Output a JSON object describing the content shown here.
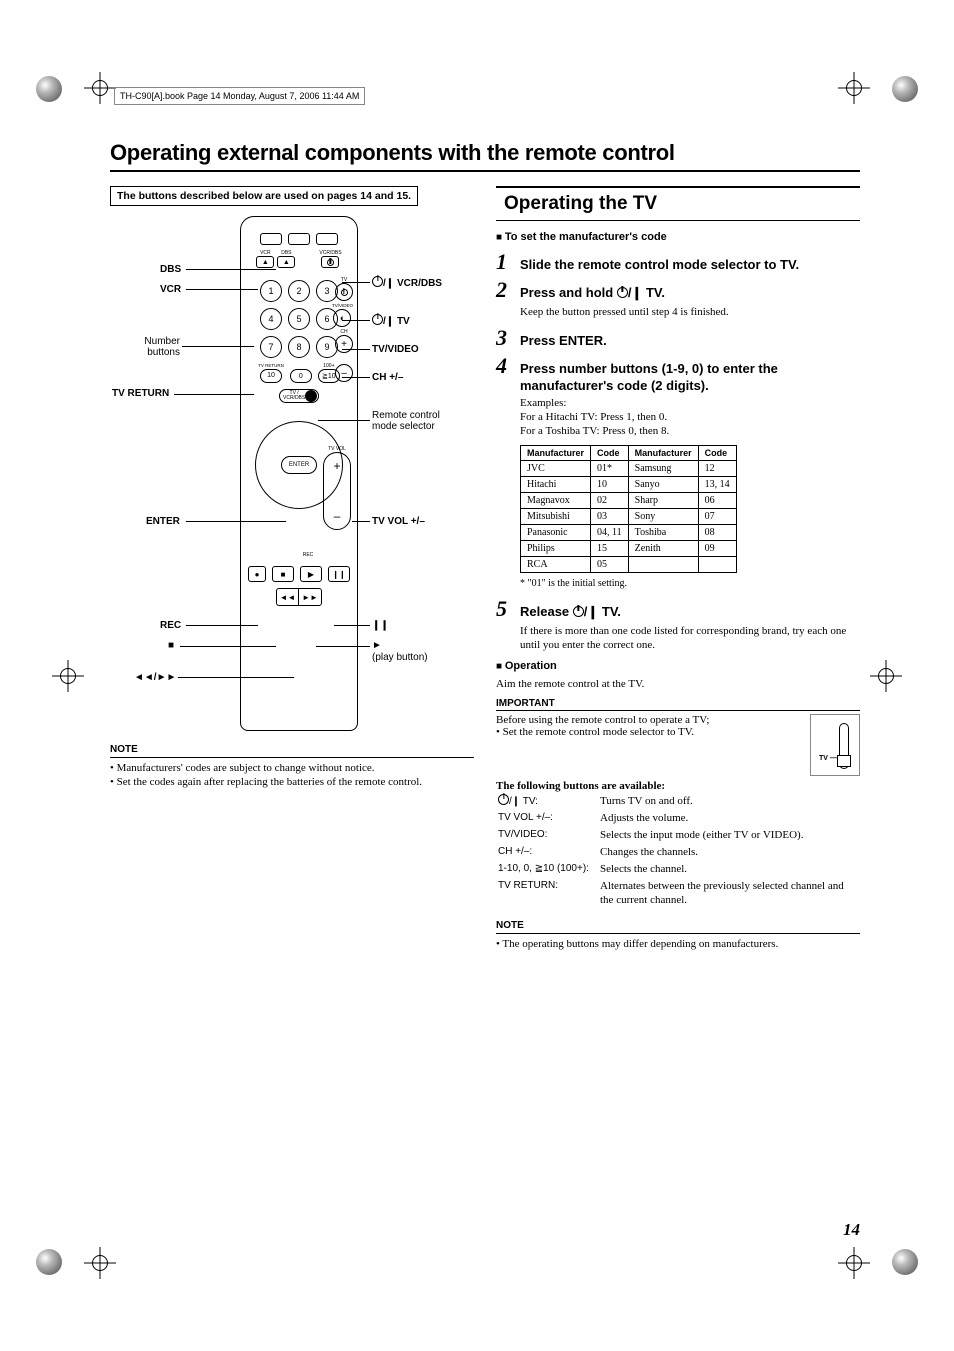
{
  "header_strip": "TH-C90[A].book  Page 14  Monday, August 7, 2006  11:44 AM",
  "main_title": "Operating external components with the remote control",
  "left": {
    "boxed_note": "The buttons described below are used on pages 14 and 15.",
    "callouts": {
      "dbs": "DBS",
      "vcr": "VCR",
      "number_buttons": "Number buttons",
      "tv_return": "TV RETURN",
      "enter": "ENTER",
      "rec": "REC",
      "stop": "■",
      "rw_ff": "◄◄/►►",
      "vcr_dbs_power": " VCR/DBS",
      "tv_power": " TV",
      "tv_video": "TV/VIDEO",
      "ch": "CH +/–",
      "mode_selector": "Remote control mode selector",
      "tv_vol": "TV VOL +/–",
      "pause": "❙❙",
      "play": "►",
      "play_button": "(play button)"
    },
    "remote_keys": {
      "top_small": [
        "VCR",
        "DBS",
        "VCR/DBS"
      ],
      "num_rows": [
        [
          "1",
          "2",
          "3"
        ],
        [
          "4",
          "5",
          "6"
        ],
        [
          "7",
          "8",
          "9"
        ],
        [
          "10",
          "0",
          "≧10"
        ]
      ],
      "tv_return_label": "TV RETURN",
      "hundred_label": "100+",
      "ch_label": "CH",
      "tv_lbl": "TV",
      "tvvideo_lbl": "TV/VIDEO",
      "tv_vol_lbl": "TV VOL",
      "mode_selector_options": "TV / VCR/DBS",
      "enter_label": "ENTER",
      "rec_label": "REC",
      "transport": [
        "■",
        "▶",
        "❙❙"
      ],
      "transport2": [
        "◄◄",
        "►►"
      ]
    },
    "note_title": "NOTE",
    "notes": [
      "Manufacturers' codes are subject to change without notice.",
      "Set the codes again after replacing the batteries of the remote control."
    ]
  },
  "right": {
    "section_title": "Operating the TV",
    "subhead_set_code": "To set the manufacturer's code",
    "step1": "Slide the remote control mode selector to TV.",
    "step2": "Press and hold ",
    "step2_suffix": " TV.",
    "step2_body": "Keep the button pressed until step 4 is finished.",
    "step3": "Press ENTER.",
    "step4": "Press number buttons (1-9, 0) to enter the manufacturer's code (2 digits).",
    "step4_examples_label": "Examples:",
    "step4_ex1": "For a Hitachi TV: Press 1, then 0.",
    "step4_ex2": "For a Toshiba TV: Press 0, then 8.",
    "code_table": {
      "headers": [
        "Manufacturer",
        "Code",
        "Manufacturer",
        "Code"
      ],
      "rows": [
        [
          "JVC",
          "01*",
          "Samsung",
          "12"
        ],
        [
          "Hitachi",
          "10",
          "Sanyo",
          "13, 14"
        ],
        [
          "Magnavox",
          "02",
          "Sharp",
          "06"
        ],
        [
          "Mitsubishi",
          "03",
          "Sony",
          "07"
        ],
        [
          "Panasonic",
          "04, 11",
          "Toshiba",
          "08"
        ],
        [
          "Philips",
          "15",
          "Zenith",
          "09"
        ],
        [
          "RCA",
          "05",
          "",
          ""
        ]
      ]
    },
    "table_footnote": "* \"01\" is the initial setting.",
    "step5": "Release ",
    "step5_suffix": " TV.",
    "step5_body": "If there is more than one code listed for corresponding brand, try each one until you enter the correct one.",
    "subhead_operation": "Operation",
    "operation_body": "Aim the remote control at the TV.",
    "important_title": "IMPORTANT",
    "important_line": "Before using the remote control to operate a TV;",
    "important_bullet": "Set the remote control mode selector to TV.",
    "available_title": "The following buttons are available:",
    "slider_label": "TV",
    "btn_functions": [
      {
        "k": " TV:",
        "v": "Turns TV on and off."
      },
      {
        "k": "TV VOL +/–:",
        "v": "Adjusts the volume."
      },
      {
        "k": "TV/VIDEO:",
        "v": "Selects the input mode (either TV or VIDEO)."
      },
      {
        "k": "CH +/–:",
        "v": "Changes the channels."
      },
      {
        "k": "1-10, 0, ≧10 (100+):",
        "v": "Selects the channel."
      },
      {
        "k": "TV RETURN:",
        "v": "Alternates between the previously selected channel and the current channel."
      }
    ],
    "note2_title": "NOTE",
    "note2_bullet": "The operating buttons may differ depending on manufacturers."
  },
  "page_number": "14"
}
